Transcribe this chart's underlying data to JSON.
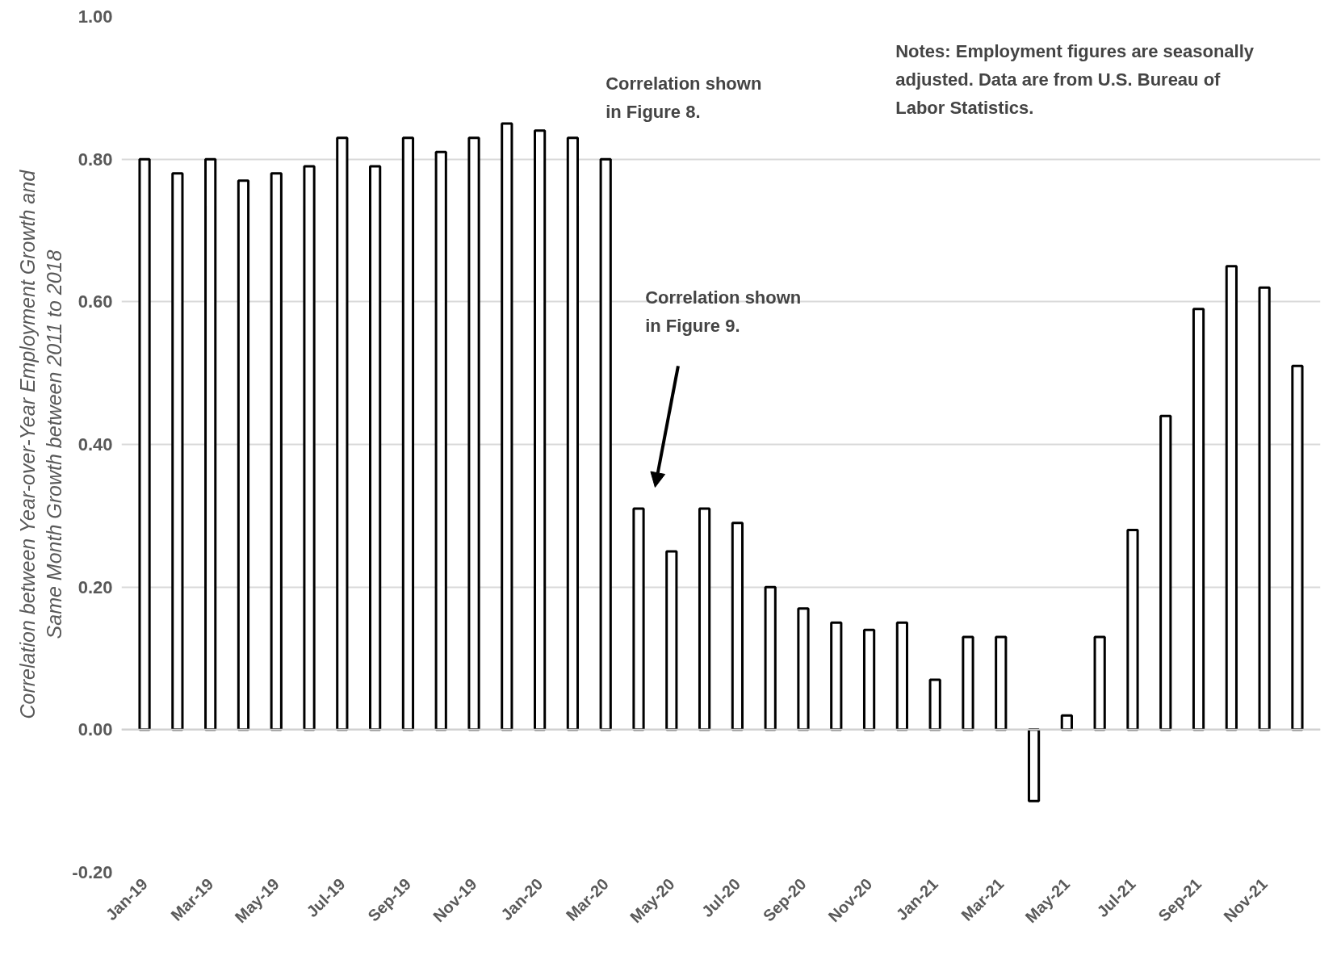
{
  "chart_data": {
    "type": "bar",
    "categories": [
      "Jan-19",
      null,
      "Mar-19",
      null,
      "May-19",
      null,
      "Jul-19",
      null,
      "Sep-19",
      null,
      "Nov-19",
      null,
      "Jan-20",
      null,
      "Mar-20",
      null,
      "May-20",
      null,
      "Jul-20",
      null,
      "Sep-20",
      null,
      "Nov-20",
      null,
      "Jan-21",
      null,
      "Mar-21",
      null,
      "May-21",
      null,
      "Jul-21",
      null,
      "Sep-21",
      null,
      "Nov-21",
      null
    ],
    "values": [
      0.8,
      0.78,
      0.8,
      0.77,
      0.78,
      0.79,
      0.83,
      0.79,
      0.83,
      0.81,
      0.83,
      0.85,
      0.84,
      0.83,
      0.8,
      0.31,
      0.25,
      0.31,
      0.29,
      0.2,
      0.17,
      0.15,
      0.14,
      0.15,
      0.07,
      0.13,
      0.13,
      -0.1,
      0.02,
      0.13,
      0.28,
      0.44,
      0.59,
      0.65,
      0.62,
      0.51
    ],
    "color": "#ffffff",
    "ylabel": "Correlation between Year-over-Year Employment Growth and\nSame Month Growth between 2011 to 2018",
    "ylim": [
      -0.2,
      1.0
    ],
    "yticks": [
      {
        "value": -0.2,
        "label": "-0.20"
      },
      {
        "value": 0,
        "label": "0.00"
      },
      {
        "value": 0.2,
        "label": "0.20"
      },
      {
        "value": 0.4,
        "label": "0.40"
      },
      {
        "value": 0.6,
        "label": "0.60"
      },
      {
        "value": 0.8,
        "label": "0.80"
      },
      {
        "value": 1.0,
        "label": "1.00"
      }
    ],
    "grid": "y",
    "annotations": [
      "Correlation shown\nin Figure 8.",
      "Correlation shown\nin Figure 9.",
      "Notes: Employment figures are seasonally\nadjusted. Data are from U.S. Bureau of\nLabor Statistics."
    ]
  }
}
